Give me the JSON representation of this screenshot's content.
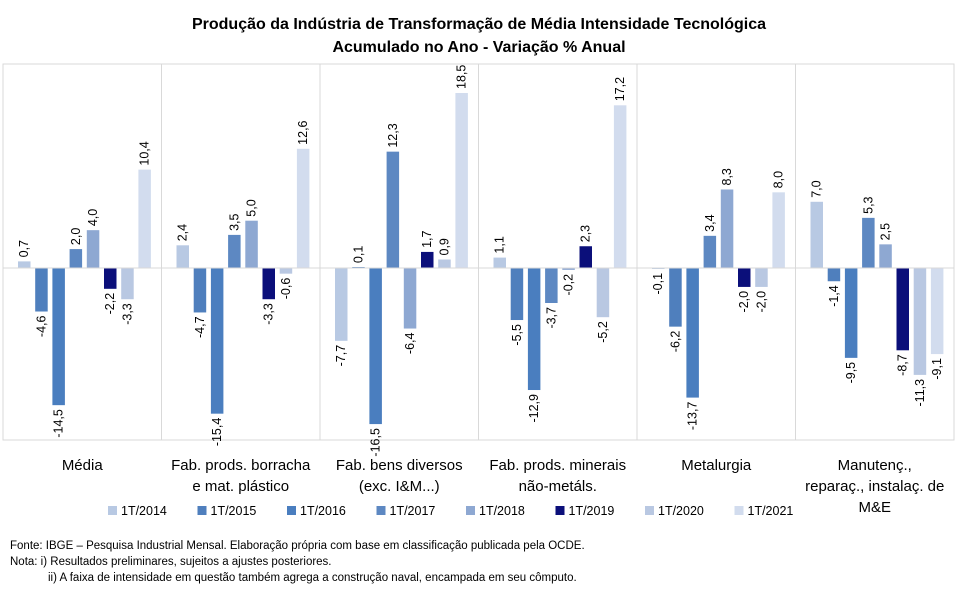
{
  "chart_data": {
    "type": "bar",
    "title": "Produção da Indústria de Transformação de Média Intensidade Tecnológica",
    "subtitle": "Acumulado no Ano - Variação % Anual",
    "categories": [
      [
        "Média"
      ],
      [
        "Fab. prods. borracha",
        "e mat. plástico"
      ],
      [
        "Fab. bens diversos",
        "(exc. I&M...)"
      ],
      [
        "Fab. prods. minerais",
        "não-metáls."
      ],
      [
        "Metalurgia"
      ],
      [
        "Manutenç.,",
        "reparaç., instalaç. de",
        "M&E"
      ]
    ],
    "series": [
      {
        "name": "1T/2014",
        "color": "#b8c9e3",
        "values": [
          0.7,
          2.4,
          -7.7,
          1.1,
          -0.1,
          7.0
        ],
        "labels": [
          "0,7",
          "2,4",
          "-7,7",
          "1,1",
          "-0,1",
          "7,0"
        ]
      },
      {
        "name": "1T/2015",
        "color": "#4f7fbd",
        "values": [
          -4.6,
          -4.7,
          0.1,
          -5.5,
          -6.2,
          -1.4
        ],
        "labels": [
          "-4,6",
          "-4,7",
          "0,1",
          "-5,5",
          "-6,2",
          "-1,4"
        ]
      },
      {
        "name": "1T/2016",
        "color": "#4a7ebf",
        "values": [
          -14.5,
          -15.4,
          -16.5,
          -12.9,
          -13.7,
          -9.5
        ],
        "labels": [
          "-14,5",
          "-15,4",
          "-16,5",
          "-12,9",
          "-13,7",
          "-9,5"
        ]
      },
      {
        "name": "1T/2017",
        "color": "#5d88c2",
        "values": [
          2.0,
          3.5,
          12.3,
          -3.7,
          3.4,
          5.3
        ],
        "labels": [
          "2,0",
          "3,5",
          "12,3",
          "-3,7",
          "3,4",
          "5,3"
        ]
      },
      {
        "name": "1T/2018",
        "color": "#8ea8d2",
        "values": [
          4.0,
          5.0,
          -6.4,
          -0.2,
          8.3,
          2.5
        ],
        "labels": [
          "4,0",
          "5,0",
          "-6,4",
          "-0,2",
          "8,3",
          "2,5"
        ]
      },
      {
        "name": "1T/2019",
        "color": "#0b0f7a",
        "values": [
          -2.2,
          -3.3,
          1.7,
          2.3,
          -2.0,
          -8.7
        ],
        "labels": [
          "-2,2",
          "-3,3",
          "1,7",
          "2,3",
          "-2,0",
          "-8,7"
        ]
      },
      {
        "name": "1T/2020",
        "color": "#b9c8e2",
        "values": [
          -3.3,
          -0.6,
          0.9,
          -5.2,
          -2.0,
          -11.3
        ],
        "labels": [
          "-3,3",
          "-0,6",
          "0,9",
          "-5,2",
          "-2,0",
          "-11,3"
        ]
      },
      {
        "name": "1T/2021",
        "color": "#d2dcee",
        "values": [
          10.4,
          12.6,
          18.5,
          17.2,
          8.0,
          -9.1
        ],
        "labels": [
          "10,4",
          "12,6",
          "18,5",
          "17,2",
          "8,0",
          "-9,1"
        ]
      }
    ],
    "legend_position": "bottom",
    "grid": false,
    "ylim": [
      -18.5,
      20
    ]
  },
  "footer": {
    "source": "Fonte: IBGE – Pesquisa Industrial Mensal. Elaboração própria com base em classificação publicada pela OCDE.",
    "note1": "Nota: i) Resultados preliminares, sujeitos a ajustes posteriores.",
    "note2": "ii) A faixa de intensidade em questão também agrega a construção naval, encampada em seu cômputo."
  }
}
